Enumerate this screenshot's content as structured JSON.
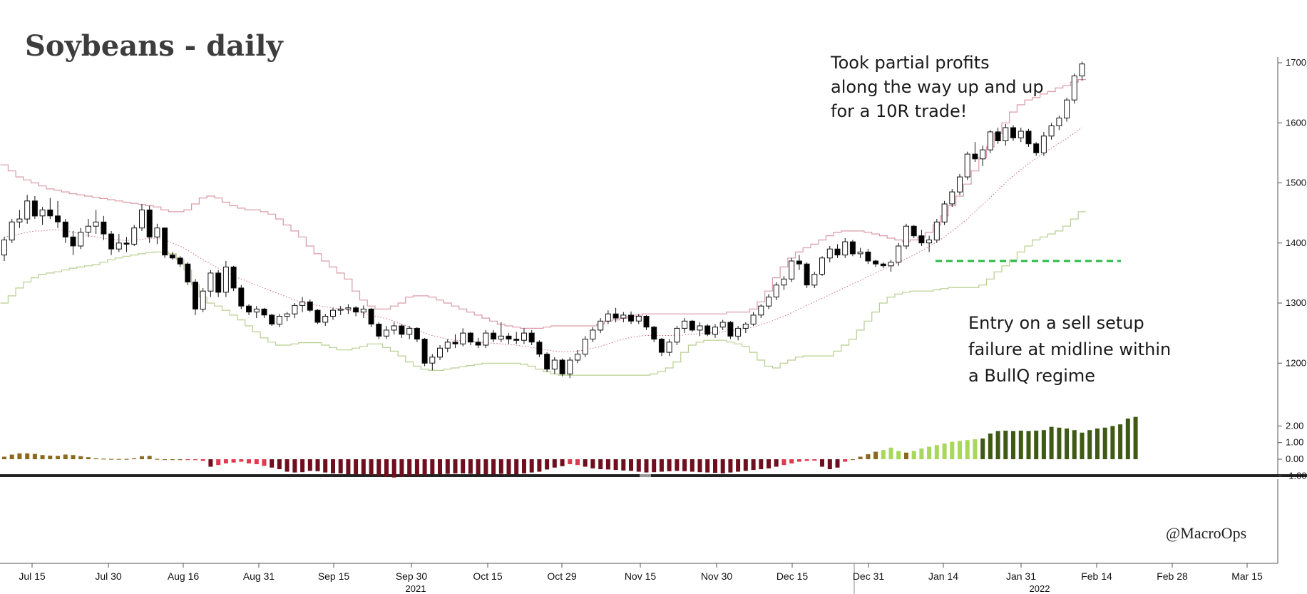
{
  "title": "Soybeans - daily",
  "annotations": {
    "profit": [
      "Took partial profits",
      "along the way up and up",
      "for a 10R trade!"
    ],
    "entry": [
      "Entry on a sell setup",
      "failure at midline within",
      "a BullQ regime"
    ]
  },
  "watermark": "@MacroOps",
  "chart_data": {
    "type": "candlestick",
    "title": "Soybeans - daily",
    "x_ticks": [
      "Jul 15",
      "Jul 30",
      "Aug 16",
      "Aug 31",
      "Sep 15",
      "Sep 30",
      "Oct 15",
      "Oct 29",
      "Nov 15",
      "Nov 30",
      "Dec 15",
      "Dec 31",
      "Jan 14",
      "Jan 31",
      "Feb 14",
      "Feb 28",
      "Mar 15"
    ],
    "year_labels": [
      "2021",
      "2022"
    ],
    "price_axis": {
      "ticks": [
        1200,
        1300,
        1400,
        1500,
        1600,
        1700
      ],
      "range": [
        1140,
        1720
      ]
    },
    "indicator_axis": {
      "ticks": [
        "2.00",
        "1.00",
        "0.00",
        "-1.00"
      ],
      "range": [
        -1.6,
        2.8
      ]
    },
    "ohlc": [
      [
        1380,
        1410,
        1370,
        1405
      ],
      [
        1405,
        1440,
        1400,
        1435
      ],
      [
        1435,
        1455,
        1425,
        1440
      ],
      [
        1440,
        1480,
        1432,
        1470
      ],
      [
        1470,
        1478,
        1440,
        1445
      ],
      [
        1445,
        1460,
        1430,
        1455
      ],
      [
        1455,
        1475,
        1440,
        1445
      ],
      [
        1445,
        1470,
        1425,
        1435
      ],
      [
        1435,
        1440,
        1400,
        1410
      ],
      [
        1410,
        1420,
        1380,
        1395
      ],
      [
        1395,
        1425,
        1390,
        1418
      ],
      [
        1418,
        1440,
        1410,
        1428
      ],
      [
        1428,
        1455,
        1415,
        1435
      ],
      [
        1435,
        1445,
        1405,
        1415
      ],
      [
        1415,
        1420,
        1380,
        1390
      ],
      [
        1390,
        1415,
        1385,
        1400
      ],
      [
        1400,
        1410,
        1385,
        1398
      ],
      [
        1398,
        1430,
        1395,
        1425
      ],
      [
        1425,
        1465,
        1420,
        1455
      ],
      [
        1455,
        1462,
        1400,
        1410
      ],
      [
        1410,
        1432,
        1398,
        1425
      ],
      [
        1425,
        1426,
        1375,
        1380
      ],
      [
        1380,
        1385,
        1372,
        1375
      ],
      [
        1375,
        1378,
        1360,
        1365
      ],
      [
        1365,
        1368,
        1330,
        1335
      ],
      [
        1335,
        1340,
        1280,
        1290
      ],
      [
        1290,
        1325,
        1285,
        1320
      ],
      [
        1320,
        1355,
        1310,
        1350
      ],
      [
        1350,
        1355,
        1310,
        1318
      ],
      [
        1318,
        1370,
        1310,
        1360
      ],
      [
        1360,
        1362,
        1320,
        1325
      ],
      [
        1325,
        1330,
        1290,
        1295
      ],
      [
        1295,
        1298,
        1280,
        1285
      ],
      [
        1285,
        1295,
        1275,
        1290
      ],
      [
        1290,
        1292,
        1275,
        1280
      ],
      [
        1280,
        1282,
        1262,
        1265
      ],
      [
        1265,
        1282,
        1260,
        1278
      ],
      [
        1278,
        1285,
        1270,
        1282
      ],
      [
        1282,
        1300,
        1275,
        1296
      ],
      [
        1296,
        1310,
        1285,
        1302
      ],
      [
        1302,
        1306,
        1285,
        1288
      ],
      [
        1288,
        1290,
        1265,
        1268
      ],
      [
        1268,
        1282,
        1262,
        1278
      ],
      [
        1278,
        1292,
        1272,
        1288
      ],
      [
        1288,
        1295,
        1280,
        1290
      ],
      [
        1290,
        1298,
        1282,
        1292
      ],
      [
        1292,
        1295,
        1278,
        1285
      ],
      [
        1285,
        1296,
        1275,
        1290
      ],
      [
        1290,
        1292,
        1260,
        1265
      ],
      [
        1265,
        1268,
        1240,
        1245
      ],
      [
        1245,
        1262,
        1240,
        1255
      ],
      [
        1255,
        1268,
        1248,
        1262
      ],
      [
        1262,
        1265,
        1242,
        1248
      ],
      [
        1248,
        1262,
        1240,
        1258
      ],
      [
        1258,
        1260,
        1235,
        1240
      ],
      [
        1240,
        1242,
        1195,
        1200
      ],
      [
        1200,
        1215,
        1188,
        1210
      ],
      [
        1210,
        1230,
        1205,
        1225
      ],
      [
        1225,
        1240,
        1218,
        1235
      ],
      [
        1235,
        1248,
        1225,
        1232
      ],
      [
        1232,
        1258,
        1228,
        1250
      ],
      [
        1250,
        1252,
        1230,
        1235
      ],
      [
        1235,
        1242,
        1225,
        1230
      ],
      [
        1230,
        1255,
        1225,
        1250
      ],
      [
        1250,
        1255,
        1235,
        1240
      ],
      [
        1240,
        1268,
        1235,
        1245
      ],
      [
        1245,
        1250,
        1232,
        1240
      ],
      [
        1240,
        1252,
        1232,
        1238
      ],
      [
        1238,
        1258,
        1232,
        1250
      ],
      [
        1250,
        1255,
        1230,
        1235
      ],
      [
        1235,
        1238,
        1210,
        1215
      ],
      [
        1215,
        1218,
        1185,
        1190
      ],
      [
        1190,
        1210,
        1182,
        1205
      ],
      [
        1205,
        1208,
        1178,
        1182
      ],
      [
        1182,
        1210,
        1175,
        1205
      ],
      [
        1205,
        1222,
        1200,
        1215
      ],
      [
        1215,
        1245,
        1210,
        1240
      ],
      [
        1240,
        1260,
        1235,
        1255
      ],
      [
        1255,
        1275,
        1250,
        1270
      ],
      [
        1270,
        1288,
        1265,
        1282
      ],
      [
        1282,
        1292,
        1268,
        1275
      ],
      [
        1275,
        1285,
        1268,
        1280
      ],
      [
        1280,
        1286,
        1265,
        1270
      ],
      [
        1270,
        1282,
        1265,
        1278
      ],
      [
        1278,
        1280,
        1255,
        1260
      ],
      [
        1260,
        1262,
        1235,
        1240
      ],
      [
        1240,
        1242,
        1212,
        1218
      ],
      [
        1218,
        1240,
        1212,
        1235
      ],
      [
        1235,
        1262,
        1230,
        1258
      ],
      [
        1258,
        1275,
        1250,
        1270
      ],
      [
        1270,
        1272,
        1252,
        1255
      ],
      [
        1255,
        1268,
        1245,
        1262
      ],
      [
        1262,
        1265,
        1245,
        1248
      ],
      [
        1248,
        1265,
        1242,
        1260
      ],
      [
        1260,
        1272,
        1255,
        1268
      ],
      [
        1268,
        1270,
        1240,
        1245
      ],
      [
        1245,
        1262,
        1238,
        1258
      ],
      [
        1258,
        1268,
        1250,
        1265
      ],
      [
        1265,
        1285,
        1262,
        1280
      ],
      [
        1280,
        1298,
        1275,
        1295
      ],
      [
        1295,
        1315,
        1290,
        1310
      ],
      [
        1310,
        1335,
        1305,
        1330
      ],
      [
        1330,
        1345,
        1322,
        1340
      ],
      [
        1340,
        1375,
        1335,
        1370
      ],
      [
        1370,
        1380,
        1355,
        1365
      ],
      [
        1365,
        1368,
        1325,
        1330
      ],
      [
        1330,
        1352,
        1325,
        1348
      ],
      [
        1348,
        1378,
        1345,
        1375
      ],
      [
        1375,
        1395,
        1368,
        1390
      ],
      [
        1390,
        1398,
        1375,
        1380
      ],
      [
        1380,
        1408,
        1375,
        1402
      ],
      [
        1402,
        1405,
        1378,
        1382
      ],
      [
        1382,
        1392,
        1375,
        1385
      ],
      [
        1385,
        1390,
        1365,
        1370
      ],
      [
        1370,
        1372,
        1360,
        1365
      ],
      [
        1365,
        1368,
        1358,
        1362
      ],
      [
        1362,
        1372,
        1352,
        1368
      ],
      [
        1368,
        1400,
        1362,
        1395
      ],
      [
        1395,
        1432,
        1390,
        1428
      ],
      [
        1428,
        1430,
        1408,
        1412
      ],
      [
        1412,
        1422,
        1395,
        1400
      ],
      [
        1400,
        1412,
        1385,
        1405
      ],
      [
        1405,
        1440,
        1400,
        1435
      ],
      [
        1435,
        1470,
        1430,
        1465
      ],
      [
        1465,
        1490,
        1460,
        1485
      ],
      [
        1485,
        1515,
        1480,
        1510
      ],
      [
        1510,
        1552,
        1505,
        1548
      ],
      [
        1548,
        1568,
        1535,
        1540
      ],
      [
        1540,
        1562,
        1528,
        1555
      ],
      [
        1555,
        1588,
        1550,
        1585
      ],
      [
        1585,
        1592,
        1565,
        1570
      ],
      [
        1570,
        1598,
        1562,
        1592
      ],
      [
        1592,
        1596,
        1570,
        1575
      ],
      [
        1575,
        1592,
        1568,
        1586
      ],
      [
        1586,
        1590,
        1560,
        1565
      ],
      [
        1565,
        1568,
        1545,
        1550
      ],
      [
        1550,
        1585,
        1545,
        1578
      ],
      [
        1578,
        1600,
        1572,
        1595
      ],
      [
        1595,
        1612,
        1588,
        1608
      ],
      [
        1608,
        1642,
        1602,
        1638
      ],
      [
        1638,
        1682,
        1632,
        1678
      ],
      [
        1678,
        1702,
        1670,
        1698
      ]
    ],
    "bands": {
      "upper": [
        1530,
        1520,
        1510,
        1505,
        1500,
        1495,
        1490,
        1488,
        1485,
        1482,
        1480,
        1478,
        1476,
        1474,
        1472,
        1470,
        1468,
        1466,
        1464,
        1462,
        1460,
        1455,
        1452,
        1452,
        1455,
        1465,
        1475,
        1478,
        1475,
        1468,
        1462,
        1458,
        1455,
        1455,
        1452,
        1448,
        1440,
        1430,
        1420,
        1410,
        1395,
        1382,
        1370,
        1360,
        1350,
        1340,
        1320,
        1305,
        1295,
        1290,
        1290,
        1295,
        1300,
        1310,
        1312,
        1312,
        1310,
        1305,
        1300,
        1295,
        1290,
        1285,
        1280,
        1275,
        1270,
        1265,
        1262,
        1260,
        1258,
        1258,
        1258,
        1260,
        1262,
        1262,
        1262,
        1262,
        1262,
        1262,
        1265,
        1270,
        1272,
        1275,
        1278,
        1280,
        1282,
        1282,
        1282,
        1282,
        1282,
        1282,
        1282,
        1282,
        1282,
        1282,
        1282,
        1285,
        1285,
        1285,
        1290,
        1302,
        1320,
        1342,
        1360,
        1375,
        1385,
        1392,
        1398,
        1405,
        1412,
        1418,
        1420,
        1420,
        1420,
        1418,
        1415,
        1412,
        1408,
        1405,
        1402,
        1405,
        1410,
        1418,
        1430,
        1445,
        1462,
        1478,
        1498,
        1520,
        1542,
        1560,
        1582,
        1600,
        1618,
        1630,
        1638,
        1642,
        1648,
        1652,
        1658,
        1662,
        1668,
        1672
      ],
      "middle": [
        1410,
        1412,
        1415,
        1418,
        1420,
        1420,
        1422,
        1422,
        1420,
        1418,
        1415,
        1412,
        1410,
        1408,
        1406,
        1405,
        1404,
        1405,
        1406,
        1408,
        1408,
        1405,
        1400,
        1395,
        1388,
        1380,
        1372,
        1365,
        1358,
        1352,
        1345,
        1340,
        1335,
        1330,
        1325,
        1320,
        1315,
        1310,
        1305,
        1300,
        1298,
        1296,
        1294,
        1292,
        1290,
        1288,
        1286,
        1283,
        1280,
        1277,
        1274,
        1270,
        1265,
        1260,
        1255,
        1250,
        1246,
        1243,
        1240,
        1238,
        1237,
        1236,
        1235,
        1234,
        1233,
        1232,
        1231,
        1230,
        1228,
        1226,
        1224,
        1222,
        1220,
        1219,
        1219,
        1220,
        1222,
        1225,
        1228,
        1232,
        1236,
        1240,
        1243,
        1245,
        1246,
        1246,
        1246,
        1246,
        1246,
        1247,
        1248,
        1249,
        1250,
        1251,
        1252,
        1254,
        1256,
        1258,
        1260,
        1264,
        1268,
        1273,
        1278,
        1284,
        1290,
        1296,
        1302,
        1308,
        1314,
        1320,
        1326,
        1332,
        1338,
        1344,
        1350,
        1356,
        1362,
        1368,
        1374,
        1380,
        1387,
        1394,
        1402,
        1410,
        1420,
        1430,
        1440,
        1452,
        1464,
        1476,
        1488,
        1500,
        1512,
        1522,
        1532,
        1541,
        1550,
        1558,
        1566,
        1574,
        1583,
        1592
      ],
      "lower": [
        1300,
        1312,
        1325,
        1335,
        1342,
        1348,
        1350,
        1352,
        1355,
        1358,
        1360,
        1362,
        1364,
        1368,
        1372,
        1375,
        1378,
        1380,
        1382,
        1384,
        1385,
        1385,
        1382,
        1372,
        1355,
        1330,
        1310,
        1300,
        1295,
        1288,
        1280,
        1272,
        1262,
        1252,
        1242,
        1235,
        1230,
        1230,
        1232,
        1234,
        1234,
        1234,
        1230,
        1226,
        1222,
        1222,
        1225,
        1228,
        1232,
        1232,
        1226,
        1220,
        1212,
        1202,
        1195,
        1190,
        1188,
        1188,
        1190,
        1192,
        1194,
        1196,
        1198,
        1200,
        1200,
        1200,
        1200,
        1200,
        1198,
        1195,
        1190,
        1186,
        1182,
        1180,
        1180,
        1180,
        1180,
        1180,
        1180,
        1180,
        1180,
        1180,
        1180,
        1180,
        1180,
        1182,
        1186,
        1192,
        1202,
        1218,
        1230,
        1235,
        1238,
        1238,
        1238,
        1235,
        1232,
        1228,
        1218,
        1205,
        1195,
        1192,
        1200,
        1205,
        1210,
        1212,
        1212,
        1212,
        1212,
        1220,
        1230,
        1240,
        1255,
        1270,
        1285,
        1300,
        1310,
        1315,
        1318,
        1320,
        1320,
        1320,
        1322,
        1324,
        1326,
        1326,
        1326,
        1326,
        1330,
        1340,
        1352,
        1362,
        1372,
        1385,
        1395,
        1405,
        1410,
        1415,
        1420,
        1428,
        1440,
        1452
      ]
    },
    "entry_level": 1370,
    "indicator": [
      0.15,
      0.28,
      0.35,
      0.35,
      0.32,
      0.25,
      0.22,
      0.2,
      0.28,
      0.25,
      0.18,
      0.12,
      0.06,
      0.04,
      0.02,
      0.02,
      0.02,
      0.06,
      0.18,
      0.2,
      0.02,
      0.0,
      0.0,
      0.0,
      -0.02,
      -0.05,
      -0.1,
      -0.45,
      -0.35,
      -0.25,
      -0.2,
      -0.15,
      -0.25,
      -0.3,
      -0.4,
      -0.5,
      -0.6,
      -0.75,
      -0.8,
      -0.78,
      -0.7,
      -0.72,
      -0.8,
      -0.85,
      -0.85,
      -0.9,
      -0.92,
      -0.9,
      -0.95,
      -1.0,
      -1.05,
      -1.1,
      -1.05,
      -1.0,
      -0.98,
      -0.95,
      -0.9,
      -0.92,
      -0.88,
      -0.85,
      -0.85,
      -0.88,
      -0.9,
      -0.92,
      -0.9,
      -0.88,
      -0.92,
      -0.9,
      -0.85,
      -0.8,
      -0.75,
      -0.62,
      -0.5,
      -0.42,
      -0.3,
      -0.35,
      -0.45,
      -0.55,
      -0.6,
      -0.62,
      -0.65,
      -0.68,
      -0.7,
      -0.75,
      -0.8,
      -0.78,
      -0.75,
      -0.72,
      -0.7,
      -0.72,
      -0.75,
      -0.78,
      -0.8,
      -0.82,
      -0.85,
      -0.8,
      -0.75,
      -0.7,
      -0.65,
      -0.6,
      -0.55,
      -0.45,
      -0.35,
      -0.25,
      -0.15,
      -0.1,
      -0.08,
      -0.45,
      -0.6,
      -0.5,
      -0.15,
      0.0,
      0.15,
      0.3,
      0.45,
      0.55,
      0.7,
      0.5,
      0.4,
      0.5,
      0.65,
      0.75,
      0.85,
      0.95,
      1.05,
      1.1,
      1.15,
      1.2,
      1.25,
      1.55,
      1.7,
      1.72,
      1.7,
      1.72,
      1.7,
      1.72,
      1.75,
      1.95,
      1.9,
      1.85,
      1.75,
      1.6,
      1.75,
      1.85,
      1.9,
      2.0,
      2.1,
      2.45,
      2.55
    ]
  }
}
